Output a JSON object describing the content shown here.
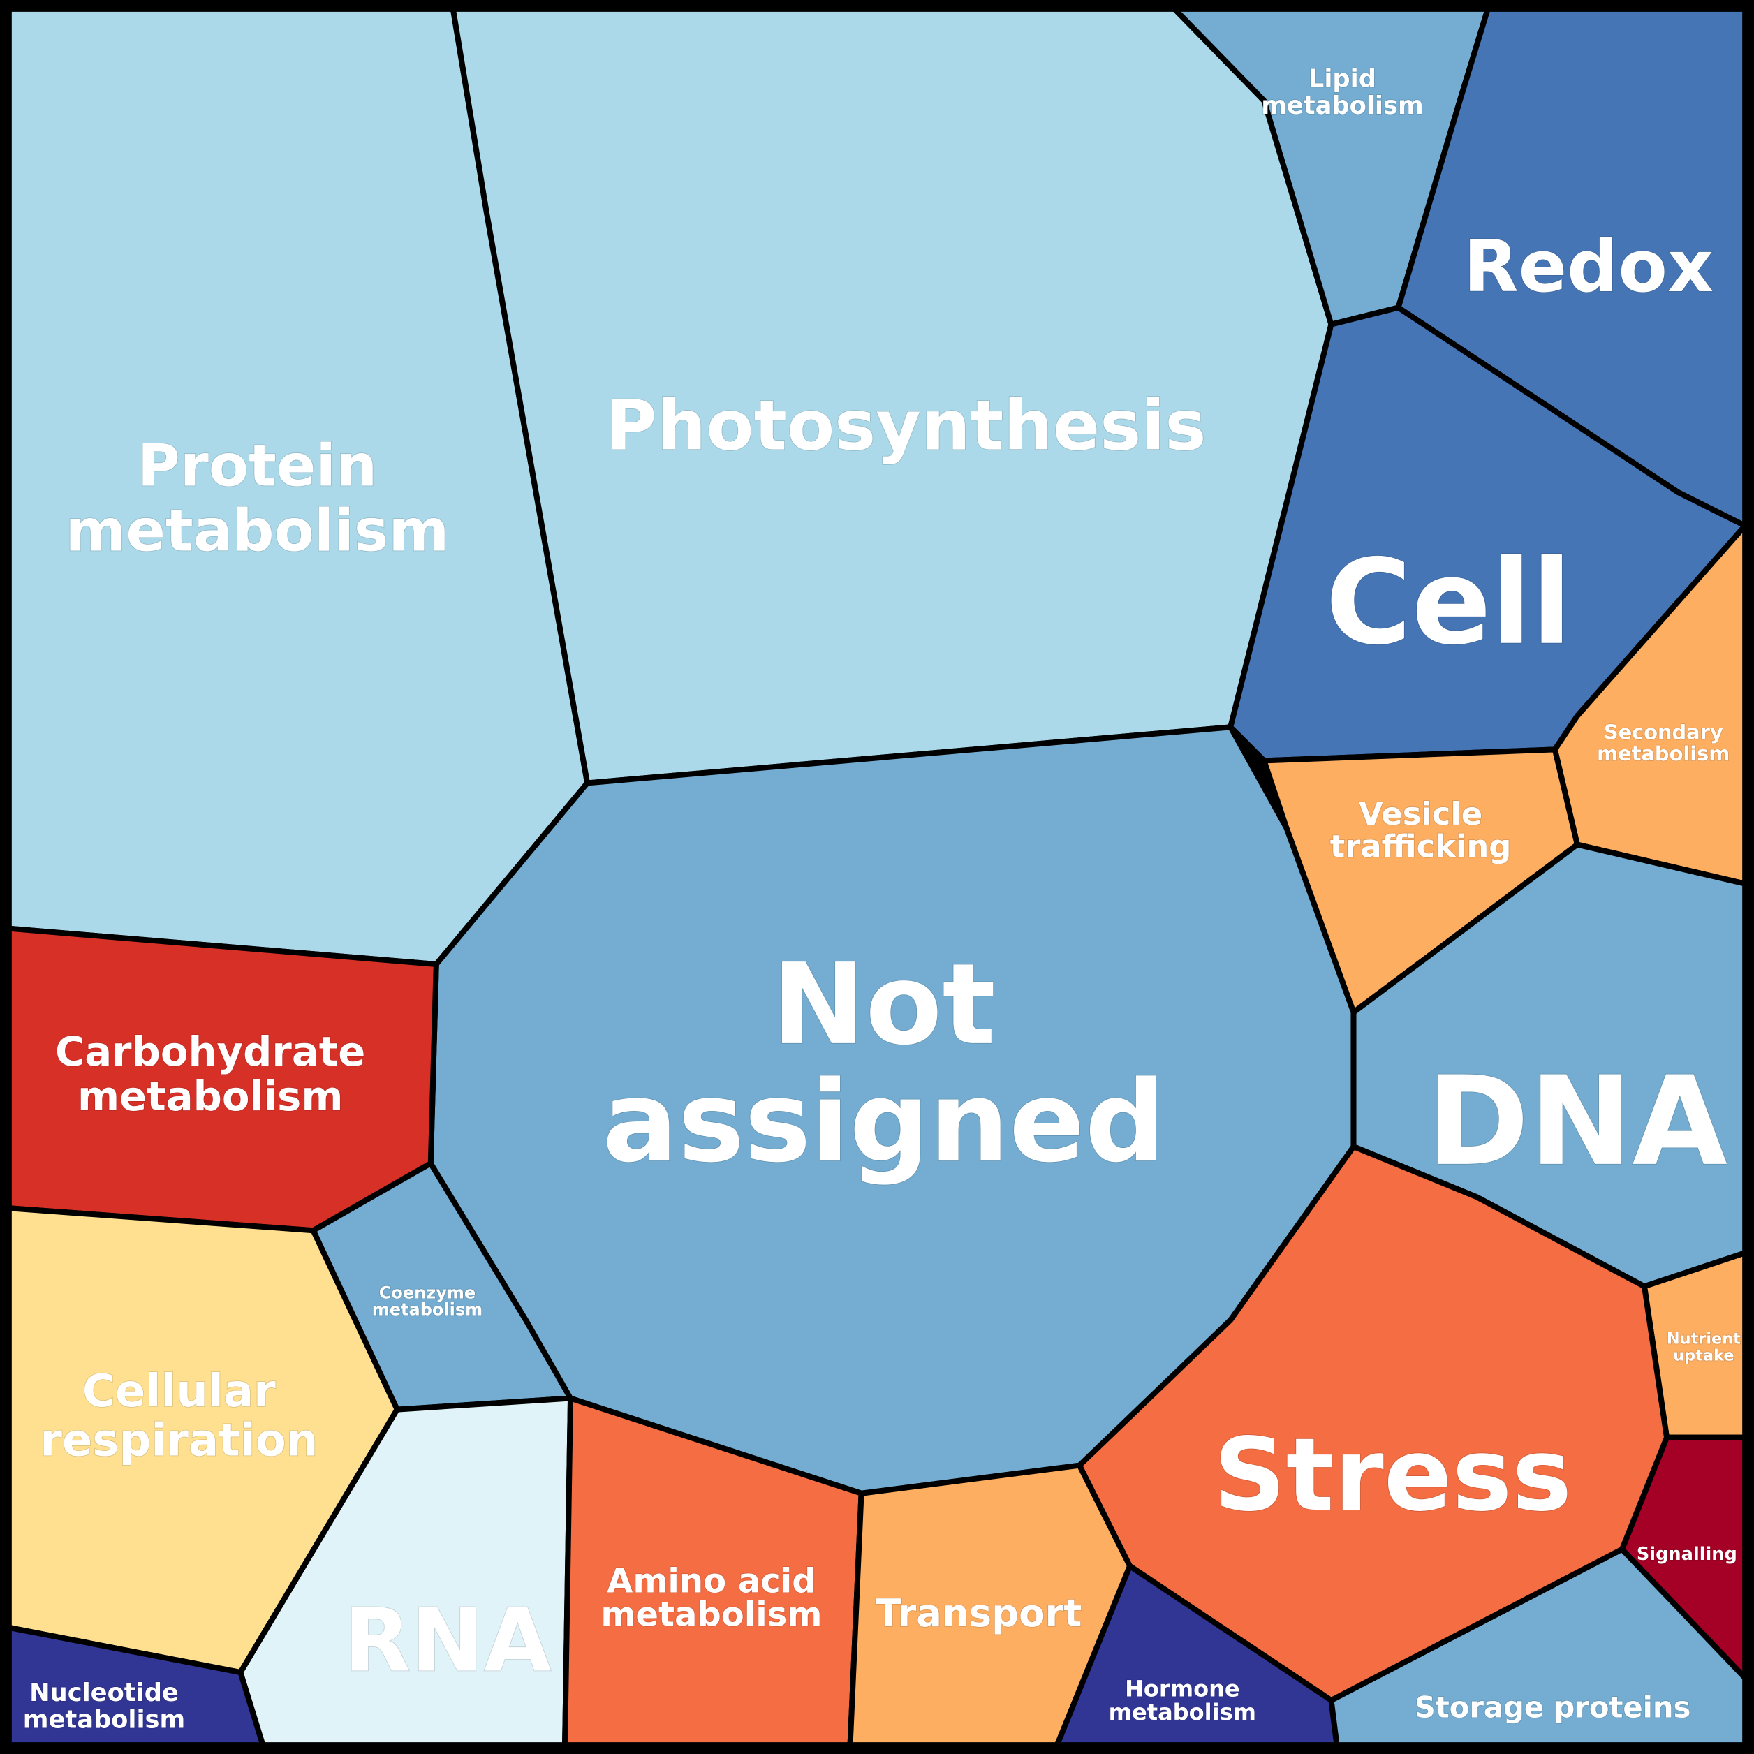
{
  "diagram_type": "voronoi treemap",
  "categories": [
    {
      "id": "protein",
      "lines": [
        "Protein",
        "metabolism"
      ],
      "color": "#abd9e9"
    },
    {
      "id": "photosynthesis",
      "lines": [
        "Photosynthesis"
      ],
      "color": "#abd9e9"
    },
    {
      "id": "lipid",
      "lines": [
        "Lipid",
        "metabolism"
      ],
      "color": "#74add1"
    },
    {
      "id": "redox",
      "lines": [
        "Redox"
      ],
      "color": "#4575b4"
    },
    {
      "id": "cell",
      "lines": [
        "Cell"
      ],
      "color": "#4575b4"
    },
    {
      "id": "secondary",
      "lines": [
        "Secondary",
        "metabolism"
      ],
      "color": "#fdae61"
    },
    {
      "id": "vesicle",
      "lines": [
        "Vesicle",
        "trafficking"
      ],
      "color": "#fdae61"
    },
    {
      "id": "dna",
      "lines": [
        "DNA"
      ],
      "color": "#74add1"
    },
    {
      "id": "nutrient",
      "lines": [
        "Nutrient",
        "uptake"
      ],
      "color": "#fdae61"
    },
    {
      "id": "signalling",
      "lines": [
        "Signalling"
      ],
      "color": "#a50026"
    },
    {
      "id": "storage",
      "lines": [
        "Storage proteins"
      ],
      "color": "#74add1"
    },
    {
      "id": "stress",
      "lines": [
        "Stress"
      ],
      "color": "#f46d43"
    },
    {
      "id": "notassigned",
      "lines": [
        "Not",
        "assigned"
      ],
      "color": "#74add1"
    },
    {
      "id": "carbohydrate",
      "lines": [
        "Carbohydrate",
        "metabolism"
      ],
      "color": "#d73027"
    },
    {
      "id": "coenzyme",
      "lines": [
        "Coenzyme",
        "metabolism"
      ],
      "color": "#74add1"
    },
    {
      "id": "respiration",
      "lines": [
        "Cellular",
        "respiration"
      ],
      "color": "#fee090"
    },
    {
      "id": "nucleotide",
      "lines": [
        "Nucleotide",
        "metabolism"
      ],
      "color": "#313695"
    },
    {
      "id": "rna",
      "lines": [
        "RNA"
      ],
      "color": "#e0f3f8"
    },
    {
      "id": "aminoacid",
      "lines": [
        "Amino acid",
        "metabolism"
      ],
      "color": "#f46d43"
    },
    {
      "id": "transport",
      "lines": [
        "Transport"
      ],
      "color": "#fdae61"
    },
    {
      "id": "hormone",
      "lines": [
        "Hormone",
        "metabolism"
      ],
      "color": "#313695"
    }
  ]
}
